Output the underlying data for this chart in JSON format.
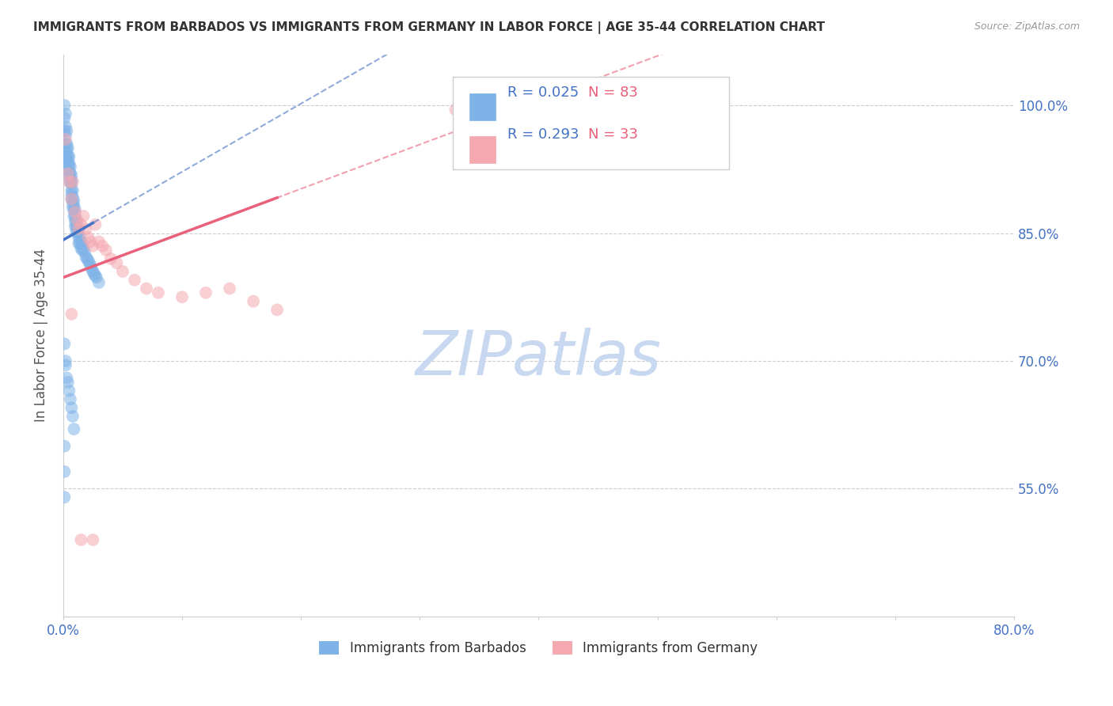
{
  "title": "IMMIGRANTS FROM BARBADOS VS IMMIGRANTS FROM GERMANY IN LABOR FORCE | AGE 35-44 CORRELATION CHART",
  "source": "Source: ZipAtlas.com",
  "ylabel": "In Labor Force | Age 35-44",
  "r_barbados": 0.025,
  "n_barbados": 83,
  "r_germany": 0.293,
  "n_germany": 33,
  "xlim": [
    0.0,
    0.8
  ],
  "ylim": [
    0.4,
    1.06
  ],
  "yticks": [
    0.55,
    0.7,
    0.85,
    1.0
  ],
  "ytick_labels": [
    "55.0%",
    "70.0%",
    "85.0%",
    "100.0%"
  ],
  "color_barbados": "#7FB3E8",
  "color_germany": "#F4A8B0",
  "trendline_barbados": "#4472C4",
  "trendline_germany": "#E8607A",
  "scatter_alpha": 0.55,
  "scatter_size": 130,
  "watermark": "ZIPatlas",
  "watermark_color": "#C8D8F0",
  "barbados_x": [
    0.001,
    0.001,
    0.001,
    0.002,
    0.002,
    0.002,
    0.002,
    0.003,
    0.003,
    0.003,
    0.003,
    0.003,
    0.004,
    0.004,
    0.004,
    0.004,
    0.005,
    0.005,
    0.005,
    0.005,
    0.005,
    0.006,
    0.006,
    0.006,
    0.006,
    0.007,
    0.007,
    0.007,
    0.007,
    0.007,
    0.007,
    0.008,
    0.008,
    0.008,
    0.008,
    0.009,
    0.009,
    0.009,
    0.009,
    0.01,
    0.01,
    0.01,
    0.01,
    0.011,
    0.011,
    0.011,
    0.012,
    0.012,
    0.013,
    0.013,
    0.013,
    0.014,
    0.014,
    0.015,
    0.015,
    0.016,
    0.016,
    0.017,
    0.018,
    0.019,
    0.02,
    0.021,
    0.022,
    0.023,
    0.024,
    0.025,
    0.026,
    0.027,
    0.028,
    0.03,
    0.001,
    0.002,
    0.002,
    0.003,
    0.004,
    0.005,
    0.006,
    0.007,
    0.008,
    0.009,
    0.001,
    0.001,
    0.001
  ],
  "barbados_y": [
    1.0,
    0.985,
    0.97,
    0.99,
    0.975,
    0.965,
    0.955,
    0.97,
    0.955,
    0.95,
    0.945,
    0.94,
    0.95,
    0.94,
    0.935,
    0.93,
    0.94,
    0.932,
    0.928,
    0.922,
    0.918,
    0.928,
    0.92,
    0.915,
    0.91,
    0.918,
    0.912,
    0.908,
    0.9,
    0.895,
    0.89,
    0.9,
    0.892,
    0.886,
    0.88,
    0.888,
    0.882,
    0.876,
    0.87,
    0.878,
    0.87,
    0.864,
    0.858,
    0.865,
    0.858,
    0.852,
    0.858,
    0.85,
    0.852,
    0.845,
    0.838,
    0.845,
    0.838,
    0.84,
    0.832,
    0.838,
    0.83,
    0.832,
    0.828,
    0.822,
    0.82,
    0.818,
    0.815,
    0.812,
    0.808,
    0.805,
    0.802,
    0.8,
    0.798,
    0.792,
    0.72,
    0.7,
    0.695,
    0.68,
    0.675,
    0.665,
    0.655,
    0.645,
    0.635,
    0.62,
    0.6,
    0.57,
    0.54
  ],
  "germany_x": [
    0.002,
    0.004,
    0.005,
    0.007,
    0.008,
    0.01,
    0.012,
    0.013,
    0.015,
    0.017,
    0.019,
    0.021,
    0.023,
    0.025,
    0.027,
    0.03,
    0.033,
    0.036,
    0.04,
    0.045,
    0.05,
    0.06,
    0.07,
    0.08,
    0.1,
    0.12,
    0.14,
    0.16,
    0.18,
    0.33,
    0.007,
    0.015,
    0.025
  ],
  "germany_y": [
    0.96,
    0.92,
    0.91,
    0.89,
    0.91,
    0.875,
    0.865,
    0.855,
    0.86,
    0.87,
    0.855,
    0.845,
    0.84,
    0.835,
    0.86,
    0.84,
    0.835,
    0.83,
    0.82,
    0.815,
    0.805,
    0.795,
    0.785,
    0.78,
    0.775,
    0.78,
    0.785,
    0.77,
    0.76,
    0.995,
    0.755,
    0.49,
    0.49
  ],
  "trendline_barbados_slope": 0.8,
  "trendline_barbados_intercept": 0.842,
  "trendline_germany_slope": 0.52,
  "trendline_germany_intercept": 0.798
}
